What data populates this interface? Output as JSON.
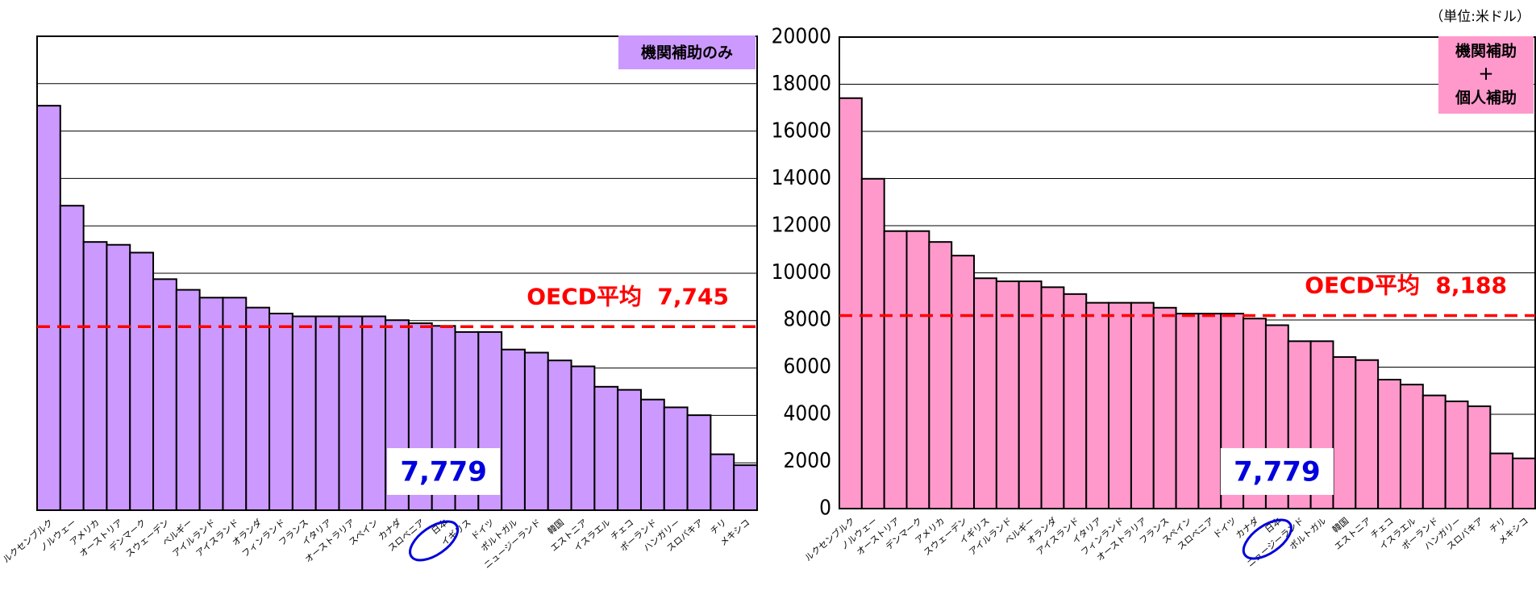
{
  "unit_note": "（単位:米ドル）",
  "chart_data": [
    {
      "type": "bar",
      "badge": [
        "機関補助のみ"
      ],
      "badge_color": "#cc99ff",
      "color": "#cc99ff",
      "categories": [
        "ルクセンブルク",
        "ノルウェー",
        "アメリカ",
        "オーストリア",
        "デンマーク",
        "スウェーデン",
        "ベルギー",
        "アイルランド",
        "アイスランド",
        "オランダ",
        "フィンランド",
        "フランス",
        "イタリア",
        "オーストラリア",
        "スペイン",
        "カナダ",
        "スロベニア",
        "日本",
        "イギリス",
        "ドイツ",
        "ポルトガル",
        "ニュージーランド",
        "韓国",
        "エストニア",
        "イスラエル",
        "チェコ",
        "ポーランド",
        "ハンガリー",
        "スロバキア",
        "チリ",
        "メキシコ"
      ],
      "values": [
        17070,
        12850,
        11320,
        11200,
        10870,
        9750,
        9300,
        8970,
        8970,
        8550,
        8300,
        8180,
        8180,
        8180,
        8180,
        8020,
        7890,
        7779,
        7520,
        7520,
        6780,
        6650,
        6320,
        6070,
        5210,
        5080,
        4670,
        4340,
        4010,
        2360,
        1900
      ],
      "ylim": [
        0,
        20000
      ],
      "yticks": [
        0,
        2000,
        4000,
        6000,
        8000,
        10000,
        12000,
        14000,
        16000,
        18000,
        20000
      ],
      "ytick_labels": false,
      "grid": true,
      "average": {
        "value": 7745,
        "label": "OECD平均  7,745"
      },
      "highlight": {
        "value": 7779,
        "label": "7,779"
      }
    },
    {
      "type": "bar",
      "badge": [
        "機関補助",
        "＋",
        "個人補助"
      ],
      "badge_color": "#ff99cc",
      "color": "#ff99cc",
      "categories": [
        "ルクセンブルク",
        "ノルウェー",
        "オーストリア",
        "デンマーク",
        "アメリカ",
        "スウェーデン",
        "イギリス",
        "アイルランド",
        "ベルギー",
        "オランダ",
        "アイスランド",
        "イタリア",
        "フィンランド",
        "オーストラリア",
        "フランス",
        "スペイン",
        "スロベニア",
        "ドイツ",
        "カナダ",
        "日本",
        "ニュージーランド",
        "ポルトガル",
        "韓国",
        "エストニア",
        "チェコ",
        "イスラエル",
        "ポーランド",
        "ハンガリー",
        "スロバキア",
        "チリ",
        "メキシコ"
      ],
      "values": [
        17410,
        13990,
        11770,
        11770,
        11310,
        10730,
        9770,
        9640,
        9640,
        9390,
        9100,
        8730,
        8730,
        8730,
        8520,
        8270,
        8270,
        8270,
        8060,
        7779,
        7100,
        7100,
        6430,
        6300,
        5470,
        5260,
        4800,
        4550,
        4340,
        2340,
        2130
      ],
      "ylim": [
        0,
        20000
      ],
      "yticks": [
        0,
        2000,
        4000,
        6000,
        8000,
        10000,
        12000,
        14000,
        16000,
        18000,
        20000
      ],
      "ytick_labels": true,
      "grid": true,
      "average": {
        "value": 8188,
        "label": "OECD平均  8,188"
      },
      "highlight": {
        "value": 7779,
        "label": "7,779"
      }
    }
  ]
}
